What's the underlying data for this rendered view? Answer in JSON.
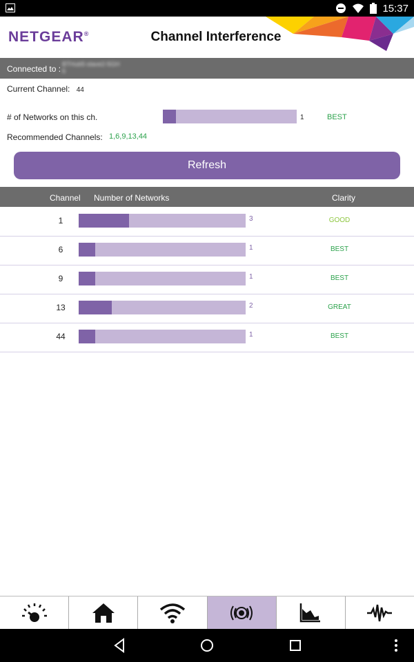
{
  "status_bar": {
    "time": "15:37",
    "icons": [
      "image-icon",
      "do-not-disturb-icon",
      "wifi-icon",
      "battery-icon"
    ]
  },
  "header": {
    "logo": "NETGEAR",
    "logo_suffix": "®",
    "title": "Channel Interference"
  },
  "connection": {
    "label": "Connected to :",
    "ssid": "BTHub5-slave2-5GH\n6"
  },
  "current_channel": {
    "label": "Current Channel:",
    "value": "44"
  },
  "networks_on_channel": {
    "label": "# of Networks on this ch.",
    "count": "1",
    "fraction": 0.1,
    "clarity": "BEST"
  },
  "recommended": {
    "label": "Recommended Channels:",
    "value": "1,6,9,13,44"
  },
  "refresh_label": "Refresh",
  "table": {
    "headers": {
      "channel": "Channel",
      "networks": "Number of Networks",
      "clarity": "Clarity"
    },
    "rows": [
      {
        "channel": "1",
        "count": "3",
        "fraction": 0.3,
        "clarity": "GOOD",
        "clarity_color": "#8dc63f"
      },
      {
        "channel": "6",
        "count": "1",
        "fraction": 0.1,
        "clarity": "BEST",
        "clarity_color": "#2ca24c"
      },
      {
        "channel": "9",
        "count": "1",
        "fraction": 0.1,
        "clarity": "BEST",
        "clarity_color": "#2ca24c"
      },
      {
        "channel": "13",
        "count": "2",
        "fraction": 0.2,
        "clarity": "GREAT",
        "clarity_color": "#2ca24c"
      },
      {
        "channel": "44",
        "count": "1",
        "fraction": 0.1,
        "clarity": "BEST",
        "clarity_color": "#2ca24c"
      }
    ]
  },
  "bottom_nav": [
    {
      "icon": "speedometer-icon",
      "active": false
    },
    {
      "icon": "home-icon",
      "active": false
    },
    {
      "icon": "wifi-icon",
      "active": false
    },
    {
      "icon": "signal-broadcast-icon",
      "active": true
    },
    {
      "icon": "area-chart-icon",
      "active": false
    },
    {
      "icon": "waveform-icon",
      "active": false
    }
  ],
  "colors": {
    "accent": "#7f63a7",
    "bar_track": "#c5b6d7",
    "status_green": "#2ca24c",
    "good_green": "#8dc63f",
    "header_gray": "#6c6c6c"
  }
}
